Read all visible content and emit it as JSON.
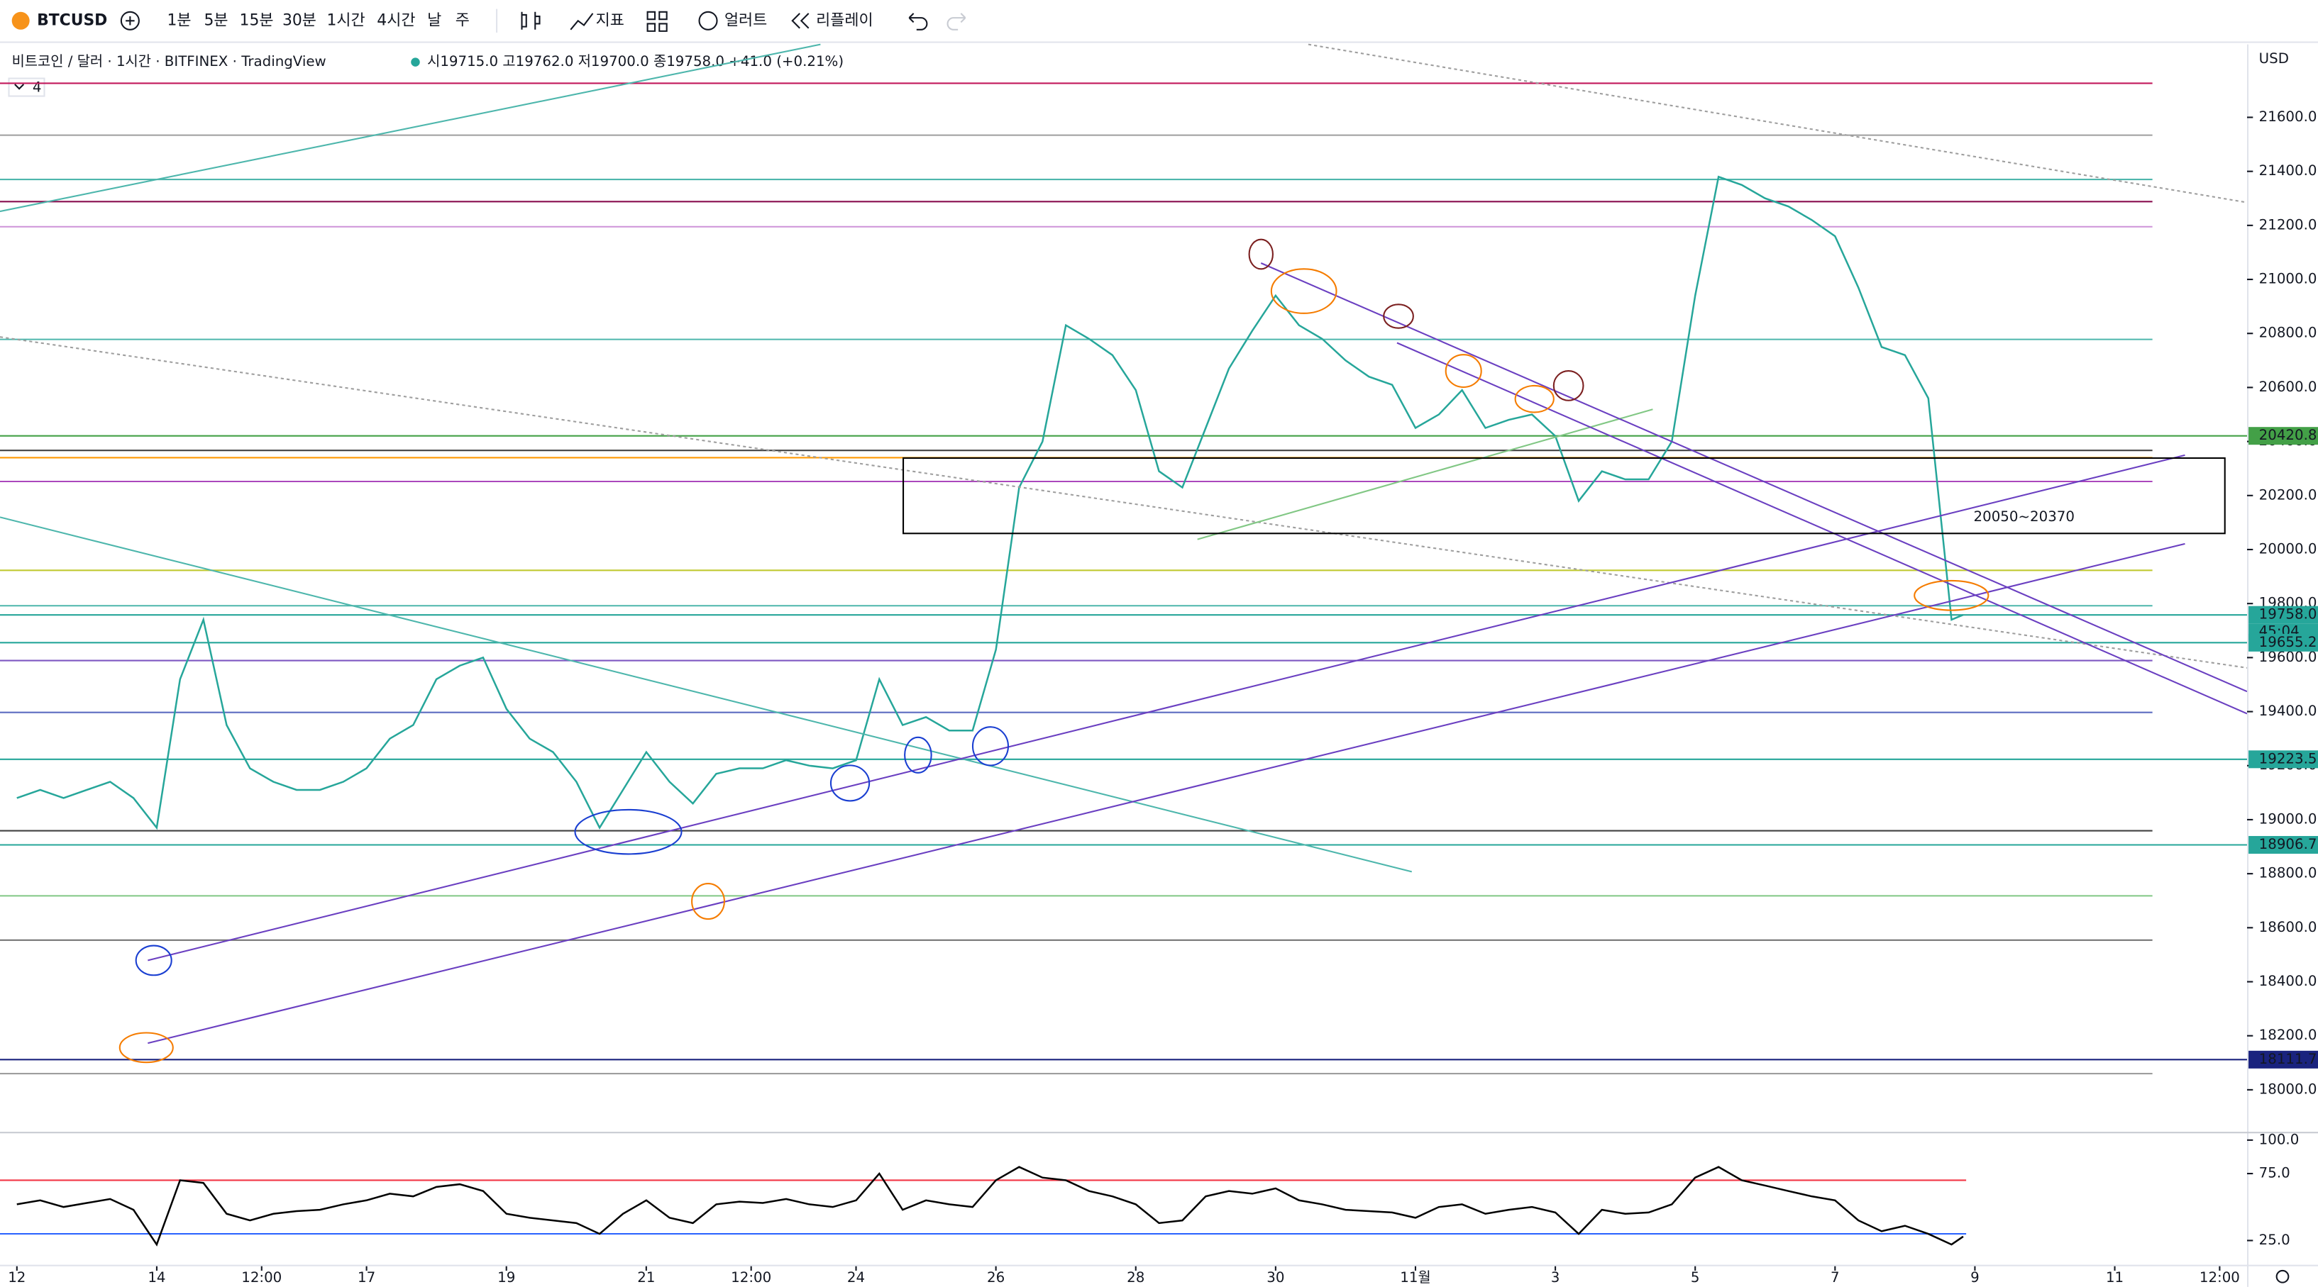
{
  "toolbar": {
    "symbol": "BTCUSD",
    "intervals": [
      "1분",
      "5분",
      "15분",
      "30분",
      "1시간",
      "4시간",
      "날",
      "주"
    ],
    "active_interval": "1시간",
    "buttons": [
      "지표",
      "얼러트",
      "리플레이"
    ]
  },
  "legend": {
    "title": "비트코인 / 달러 · 1시간 · BITFINEX · TradingView",
    "ohlc": "시19715.0 고19762.0 저19700.0 종19758.0 +41.0 (+0.21%)",
    "indicator_count": "4"
  },
  "annotation": "20050~20370",
  "chart_data": [
    {
      "type": "line",
      "axis_unit": "USD",
      "x": [
        -48,
        -40,
        -32,
        -24,
        -16,
        -8,
        0,
        8,
        16,
        24,
        32,
        40,
        48,
        56,
        64,
        72,
        80,
        88,
        96,
        104,
        112,
        120,
        128,
        136,
        144,
        152,
        160,
        168,
        176,
        184,
        192,
        200,
        208,
        216,
        224,
        232,
        240,
        248,
        256,
        264,
        272,
        280,
        288,
        296,
        304,
        312,
        320,
        328,
        336,
        344,
        352,
        360,
        368,
        376,
        384,
        392,
        400,
        408,
        416,
        424,
        432,
        440,
        448,
        456,
        464,
        472,
        480,
        488,
        496,
        504,
        512,
        520,
        528,
        536,
        544,
        552,
        560,
        568,
        576,
        584,
        592,
        600,
        608,
        616,
        620
      ],
      "series": [
        {
          "color": "#26a69a",
          "values": [
            19080,
            19110,
            19080,
            19110,
            19140,
            19080,
            18970,
            19520,
            19740,
            19350,
            19190,
            19140,
            19110,
            19110,
            19140,
            19190,
            19300,
            19350,
            19520,
            19570,
            19600,
            19410,
            19300,
            19250,
            19140,
            18970,
            19110,
            19250,
            19140,
            19060,
            19170,
            19190,
            19190,
            19220,
            19200,
            19190,
            19220,
            19520,
            19350,
            19380,
            19330,
            19330,
            19630,
            20230,
            20400,
            20830,
            20780,
            20720,
            20590,
            20290,
            20230,
            20450,
            20670,
            20810,
            20940,
            20830,
            20780,
            20700,
            20640,
            20610,
            20450,
            20500,
            20590,
            20450,
            20480,
            20500,
            20420,
            20180,
            20290,
            20260,
            20260,
            20400,
            20940,
            21380,
            21350,
            21300,
            21270,
            21220,
            21160,
            20970,
            20750,
            20720,
            20560,
            19740,
            19758
          ]
        }
      ],
      "xlim": [
        -53.8,
        717.4
      ],
      "xticks": [
        {
          "value": -48,
          "label": "12"
        },
        {
          "value": 0,
          "label": "14"
        },
        {
          "value": 36,
          "label": "12:00"
        },
        {
          "value": 72,
          "label": "17"
        },
        {
          "value": 120,
          "label": "19"
        },
        {
          "value": 168,
          "label": "21"
        },
        {
          "value": 204,
          "label": "12:00"
        },
        {
          "value": 240,
          "label": "24"
        },
        {
          "value": 288,
          "label": "26"
        },
        {
          "value": 336,
          "label": "28"
        },
        {
          "value": 384,
          "label": "30"
        },
        {
          "value": 432,
          "label": "11월"
        },
        {
          "value": 480,
          "label": "3"
        },
        {
          "value": 528,
          "label": "5"
        },
        {
          "value": 576,
          "label": "7"
        },
        {
          "value": 624,
          "label": "9"
        },
        {
          "value": 672,
          "label": "11"
        },
        {
          "value": 708,
          "label": "12:00"
        }
      ],
      "ylim": [
        17850,
        21870
      ],
      "yticks": [
        {
          "value": 18000,
          "label": "18000.0"
        },
        {
          "value": 18200,
          "label": "18200.0"
        },
        {
          "value": 18400,
          "label": "18400.0"
        },
        {
          "value": 18600,
          "label": "18600.0"
        },
        {
          "value": 18800,
          "label": "18800.0"
        },
        {
          "value": 19000,
          "label": "19000.0"
        },
        {
          "value": 19200,
          "label": "19200.0"
        },
        {
          "value": 19400,
          "label": "19400.0"
        },
        {
          "value": 19600,
          "label": "19600.0"
        },
        {
          "value": 19800,
          "label": "19800.0"
        },
        {
          "value": 20000,
          "label": "20000.0"
        },
        {
          "value": 20200,
          "label": "20200.0"
        },
        {
          "value": 20400,
          "label": "20400.0"
        },
        {
          "value": 20600,
          "label": "20600.0"
        },
        {
          "value": 20800,
          "label": "20800.0"
        },
        {
          "value": 21000,
          "label": "21000.0"
        },
        {
          "value": 21200,
          "label": "21200.0"
        },
        {
          "value": 21400,
          "label": "21400.0"
        },
        {
          "value": 21600,
          "label": "21600.0"
        }
      ],
      "hlines": [
        {
          "value": 21726,
          "color": "#c2185b"
        },
        {
          "value": 21534,
          "color": "#9e9e9e"
        },
        {
          "value": 21370,
          "color": "#4db6ac"
        },
        {
          "value": 21288,
          "color": "#880e4f"
        },
        {
          "value": 21195,
          "color": "#ce93d8"
        },
        {
          "value": 20778,
          "color": "#4db6ac"
        },
        {
          "value": 20367,
          "color": "#424242"
        },
        {
          "value": 20340,
          "color": "#ff9800"
        },
        {
          "value": 20252,
          "color": "#ab47bc"
        },
        {
          "value": 19923,
          "color": "#c0ca33"
        },
        {
          "value": 19792,
          "color": "#4db6ac"
        },
        {
          "value": 19589,
          "color": "#7e57c2"
        },
        {
          "value": 19397,
          "color": "#5c6bc0"
        },
        {
          "value": 18959,
          "color": "#424242"
        },
        {
          "value": 18718,
          "color": "#81c784"
        },
        {
          "value": 18554,
          "color": "#757575"
        },
        {
          "value": 18060,
          "color": "#9e9e9e"
        }
      ],
      "price_labels": {
        "values": [
          20420.8,
          19758,
          19655.2,
          19223.5,
          18906.7,
          18111.7
        ],
        "value_labels": [
          "20420.8",
          "19758.0",
          "19655.2",
          "19223.5",
          "18906.7",
          "18111.7"
        ],
        "colors": [
          "#43a047",
          "#26a69a",
          "#26a69a",
          "#26a69a",
          "#26a69a",
          "#1a237e"
        ]
      },
      "countdown": "45:04"
    },
    {
      "type": "line",
      "series": [
        {
          "color": "#000000",
          "values": [
            52,
            55,
            50,
            53,
            56,
            48,
            22,
            70,
            68,
            45,
            40,
            45,
            47,
            48,
            52,
            55,
            60,
            58,
            65,
            67,
            62,
            45,
            42,
            40,
            38,
            30,
            45,
            55,
            42,
            38,
            52,
            54,
            53,
            56,
            52,
            50,
            55,
            75,
            48,
            55,
            52,
            50,
            70,
            80,
            72,
            70,
            62,
            58,
            52,
            38,
            40,
            58,
            62,
            60,
            64,
            55,
            52,
            48,
            47,
            46,
            42,
            50,
            52,
            45,
            48,
            50,
            46,
            30,
            48,
            45,
            46,
            52,
            72,
            80,
            70,
            66,
            62,
            58,
            55,
            40,
            32,
            36,
            30,
            22,
            28
          ]
        }
      ],
      "ylim": [
        8,
        104
      ],
      "yticks": [
        {
          "value": 100,
          "label": "100.0"
        },
        {
          "value": 75,
          "label": "75.0"
        },
        {
          "value": 25,
          "label": "25.0"
        }
      ],
      "hlines": [
        {
          "value": 70,
          "color": "#f23645"
        },
        {
          "value": 30,
          "color": "#2962ff"
        }
      ]
    }
  ]
}
